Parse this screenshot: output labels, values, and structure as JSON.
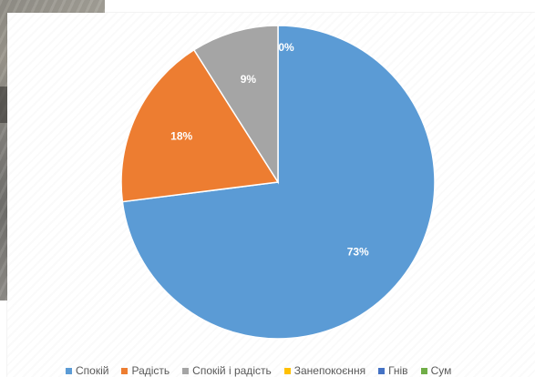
{
  "chart_data": {
    "type": "pie",
    "title": "",
    "series": [
      {
        "categories": [
          "Спокій",
          "Радість",
          "Спокій і радість",
          "Занепокоєння",
          "Гнів",
          "Сум"
        ],
        "values": [
          73,
          18,
          9,
          0,
          0,
          0
        ],
        "labels": [
          "73%",
          "18%",
          "9%",
          "0%",
          "",
          ""
        ],
        "colors": [
          "#5b9bd5",
          "#ed7d31",
          "#a5a5a5",
          "#ffc000",
          "#4472c4",
          "#70ad47"
        ]
      }
    ],
    "legend_position": "bottom",
    "start_angle": "top, clockwise"
  },
  "legend": {
    "items": [
      {
        "label": "Спокій",
        "color": "#5b9bd5"
      },
      {
        "label": "Радість",
        "color": "#ed7d31"
      },
      {
        "label": "Спокій і радість",
        "color": "#a5a5a5"
      },
      {
        "label": "Занепокоєння",
        "color": "#ffc000"
      },
      {
        "label": "Гнів",
        "color": "#4472c4"
      },
      {
        "label": "Сум",
        "color": "#70ad47"
      }
    ]
  }
}
